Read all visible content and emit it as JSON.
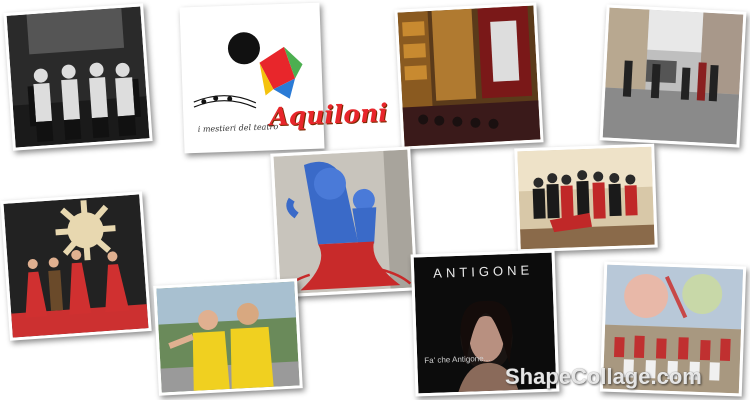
{
  "collage": {
    "photos": [
      {
        "id": "musicians-backstage",
        "subject": "four men on stage"
      },
      {
        "id": "aquiloni-logo",
        "logo_text": "Aquiloni",
        "tagline": "i mestieri del teatro"
      },
      {
        "id": "theatre-interior",
        "subject": "theatre hall with audience"
      },
      {
        "id": "street-performance",
        "subject": "performers in street"
      },
      {
        "id": "sun-dance-stage",
        "subject": "dancers in red costumes"
      },
      {
        "id": "tree-mural",
        "subject": "mural with blue figures"
      },
      {
        "id": "dance-group",
        "subject": "dance group pose"
      },
      {
        "id": "yellow-shirts",
        "subject": "two people in yellow shirts"
      },
      {
        "id": "antigone-poster",
        "title": "ANTIGONE",
        "caption": "Fa' che Antigone..."
      },
      {
        "id": "group-mosaic",
        "subject": "large group in front of mosaic"
      }
    ]
  },
  "watermark": "ShapeCollage.com",
  "colors": {
    "logo_red": "#e8262b",
    "background": "#ffffff"
  }
}
